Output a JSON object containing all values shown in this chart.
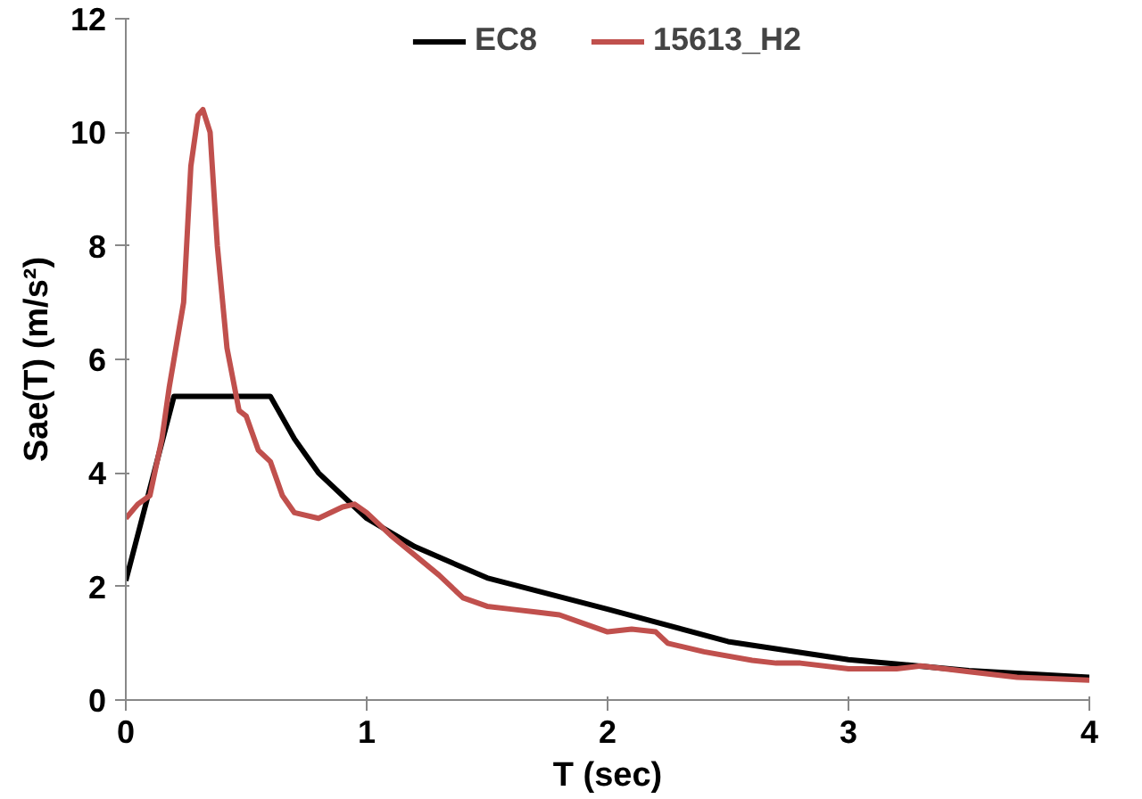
{
  "chart_data": {
    "type": "line",
    "xlabel": "T (sec)",
    "ylabel": "Sae(T) (m/s²)",
    "xlim": [
      0,
      4
    ],
    "ylim": [
      0,
      12
    ],
    "xticks": [
      0,
      1,
      2,
      3,
      4
    ],
    "yticks": [
      0,
      2,
      4,
      6,
      8,
      10,
      12
    ],
    "grid": false,
    "legend": "top",
    "marker": "none",
    "line_style": "solid",
    "series": [
      {
        "name": "EC8",
        "color": "#000000",
        "x": [
          0,
          0.2,
          0.6,
          0.7,
          0.8,
          1.0,
          1.2,
          1.5,
          2.0,
          2.5,
          3.0,
          3.5,
          4.0
        ],
        "values": [
          2.1,
          5.35,
          5.35,
          4.6,
          4.0,
          3.2,
          2.7,
          2.15,
          1.6,
          1.03,
          0.71,
          0.52,
          0.4
        ]
      },
      {
        "name": "15613_H2",
        "color": "#c0504d",
        "x": [
          0,
          0.05,
          0.1,
          0.15,
          0.18,
          0.2,
          0.24,
          0.27,
          0.3,
          0.32,
          0.35,
          0.38,
          0.42,
          0.47,
          0.5,
          0.55,
          0.6,
          0.65,
          0.7,
          0.8,
          0.9,
          0.95,
          1.0,
          1.1,
          1.2,
          1.3,
          1.4,
          1.5,
          1.6,
          1.7,
          1.8,
          1.9,
          2.0,
          2.1,
          2.2,
          2.25,
          2.4,
          2.6,
          2.7,
          2.8,
          3.0,
          3.2,
          3.3,
          3.5,
          3.7,
          4.0
        ],
        "values": [
          3.2,
          3.45,
          3.6,
          4.6,
          5.5,
          6.0,
          7.0,
          9.4,
          10.3,
          10.4,
          10.0,
          8.0,
          6.2,
          5.1,
          5.0,
          4.4,
          4.2,
          3.6,
          3.3,
          3.2,
          3.4,
          3.45,
          3.3,
          2.9,
          2.55,
          2.2,
          1.8,
          1.65,
          1.6,
          1.55,
          1.5,
          1.35,
          1.2,
          1.25,
          1.2,
          1.0,
          0.85,
          0.7,
          0.65,
          0.65,
          0.55,
          0.55,
          0.6,
          0.5,
          0.4,
          0.35
        ]
      }
    ]
  }
}
